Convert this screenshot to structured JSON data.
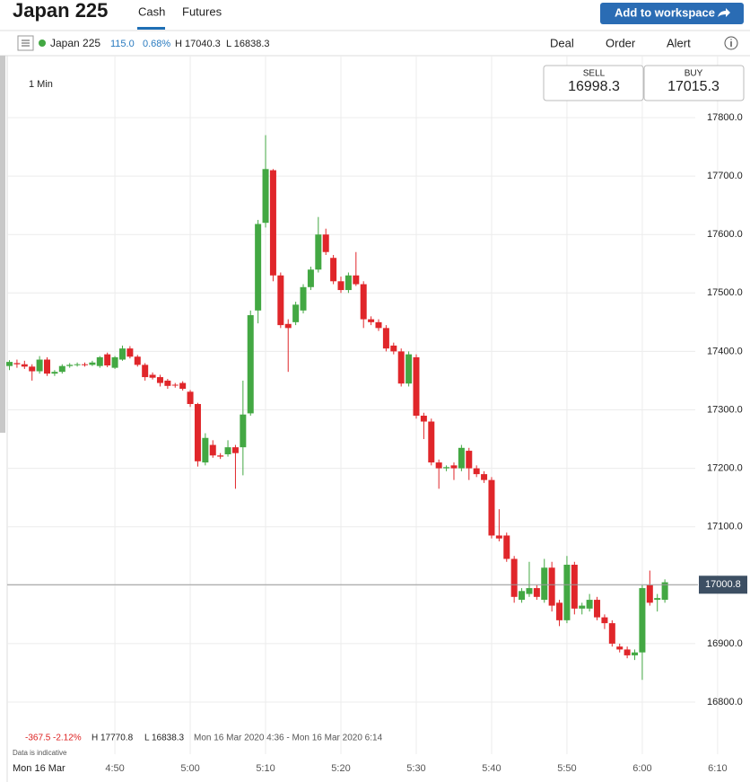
{
  "header": {
    "title": "Japan 225",
    "tabs": [
      "Cash",
      "Futures"
    ],
    "button": "Add to workspace"
  },
  "toolbar": {
    "instrument": "Japan 225",
    "change": "115.0",
    "change_pct": "0.68%",
    "high": "H 17040.3",
    "low": "L 16838.3",
    "actions": [
      "Deal",
      "Order",
      "Alert"
    ]
  },
  "interval": "1 Min",
  "quote": {
    "sell_label": "SELL",
    "sell": "16998.3",
    "buy_label": "BUY",
    "buy": "17015.3"
  },
  "stats": {
    "change": "-367.5",
    "change_pct": "-2.12%",
    "high": "H 17770.8",
    "low": "L 16838.3",
    "range": "Mon 16 Mar 2020 4:36 - Mon 16 Mar 2020 6:14",
    "note": "Data is indicative"
  },
  "chart_data": {
    "type": "candlestick",
    "date_label": "Mon 16 Mar",
    "up_color": "#43a843",
    "down_color": "#e0262a",
    "grid": true,
    "current_price": {
      "value": 17000.8,
      "label": "17000.8"
    },
    "xlim": [
      275.7,
      374.3
    ],
    "xticks": [
      {
        "value": 290,
        "label": "4:50"
      },
      {
        "value": 300,
        "label": "5:00"
      },
      {
        "value": 310,
        "label": "5:10"
      },
      {
        "value": 320,
        "label": "5:20"
      },
      {
        "value": 330,
        "label": "5:30"
      },
      {
        "value": 340,
        "label": "5:40"
      },
      {
        "value": 350,
        "label": "5:50"
      },
      {
        "value": 360,
        "label": "6:00"
      },
      {
        "value": 370,
        "label": "6:10"
      }
    ],
    "ylim": [
      16710.9,
      17906
    ],
    "yticks": [
      {
        "value": 16800,
        "label": "16800.0"
      },
      {
        "value": 16900,
        "label": "16900.0"
      },
      {
        "value": 17000,
        "label": "17000.0"
      },
      {
        "value": 17100,
        "label": "17100.0"
      },
      {
        "value": 17200,
        "label": "17200.0"
      },
      {
        "value": 17300,
        "label": "17300.0"
      },
      {
        "value": 17400,
        "label": "17400.0"
      },
      {
        "value": 17500,
        "label": "17500.0"
      },
      {
        "value": 17600,
        "label": "17600.0"
      },
      {
        "value": 17700,
        "label": "17700.0"
      },
      {
        "value": 17800,
        "label": "17800.0"
      }
    ],
    "x": [
      276,
      277,
      278,
      279,
      280,
      281,
      282,
      283,
      284,
      285,
      286,
      287,
      288,
      289,
      290,
      291,
      292,
      293,
      294,
      295,
      296,
      297,
      298,
      299,
      300,
      301,
      302,
      303,
      304,
      305,
      306,
      307,
      308,
      309,
      310,
      311,
      312,
      313,
      314,
      315,
      316,
      317,
      318,
      319,
      320,
      321,
      322,
      323,
      324,
      325,
      326,
      327,
      328,
      329,
      330,
      331,
      332,
      333,
      334,
      335,
      336,
      337,
      338,
      339,
      340,
      341,
      342,
      343,
      344,
      345,
      346,
      347,
      348,
      349,
      350,
      351,
      352,
      353,
      354,
      355,
      356,
      357,
      358,
      359,
      360,
      361,
      362,
      363
    ],
    "open": [
      17375,
      17380,
      17378,
      17374,
      17366,
      17386,
      17362,
      17365,
      17375,
      17377,
      17378,
      17377,
      17375,
      17395,
      17372,
      17386,
      17405,
      17391,
      17377,
      17360,
      17356,
      17350,
      17343,
      17346,
      17331,
      17310,
      17210,
      17240,
      17222,
      17224,
      17236,
      17236,
      17294,
      17470,
      17620,
      17710,
      17530,
      17447,
      17450,
      17470,
      17510,
      17540,
      17600,
      17560,
      17520,
      17505,
      17530,
      17515,
      17455,
      17450,
      17440,
      17410,
      17400,
      17345,
      17390,
      17290,
      17280,
      17210,
      17200,
      17205,
      17200,
      17230,
      17200,
      17190,
      17180,
      17085,
      17085,
      17045,
      16975,
      16985,
      16995,
      16975,
      17030,
      16970,
      16940,
      17035,
      16960,
      16960,
      16975,
      16945,
      16935,
      16895,
      16890,
      16880,
      16885,
      17000,
      16975,
      16975
    ],
    "high": [
      17385,
      17386,
      17384,
      17378,
      17392,
      17390,
      17368,
      17378,
      17380,
      17381,
      17381,
      17384,
      17392,
      17398,
      17392,
      17410,
      17409,
      17394,
      17380,
      17364,
      17360,
      17353,
      17346,
      17349,
      17334,
      17312,
      17260,
      17248,
      17226,
      17248,
      17240,
      17350,
      17470,
      17625,
      17770,
      17712,
      17535,
      17455,
      17485,
      17515,
      17545,
      17630,
      17610,
      17565,
      17528,
      17535,
      17570,
      17520,
      17460,
      17455,
      17445,
      17415,
      17405,
      17400,
      17395,
      17295,
      17285,
      17215,
      17205,
      17210,
      17240,
      17235,
      17205,
      17195,
      17185,
      17130,
      17090,
      17050,
      16995,
      17040,
      17000,
      17045,
      17040,
      16975,
      17050,
      17040,
      16970,
      16985,
      16980,
      16950,
      16940,
      16900,
      16895,
      16890,
      17000,
      17025,
      16985,
      17010
    ],
    "low": [
      17368,
      17372,
      17370,
      17350,
      17362,
      17358,
      17358,
      17362,
      17372,
      17374,
      17374,
      17375,
      17372,
      17373,
      17370,
      17384,
      17388,
      17374,
      17350,
      17352,
      17340,
      17336,
      17338,
      17333,
      17305,
      17203,
      17205,
      17218,
      17216,
      17220,
      17165,
      17188,
      17290,
      17448,
      17612,
      17520,
      17440,
      17365,
      17445,
      17465,
      17505,
      17535,
      17565,
      17515,
      17500,
      17500,
      17512,
      17440,
      17445,
      17435,
      17400,
      17395,
      17340,
      17340,
      17285,
      17250,
      17205,
      17165,
      17195,
      17180,
      17195,
      17180,
      17185,
      17175,
      17080,
      17075,
      17040,
      16970,
      16970,
      16980,
      16975,
      16970,
      16955,
      16930,
      16935,
      16950,
      16950,
      16955,
      16940,
      16925,
      16895,
      16885,
      16875,
      16872,
      16838,
      16965,
      16955,
      16970
    ],
    "close": [
      17382,
      17378,
      17374,
      17366,
      17386,
      17362,
      17365,
      17375,
      17377,
      17378,
      17377,
      17381,
      17390,
      17376,
      17390,
      17405,
      17391,
      17377,
      17356,
      17355,
      17346,
      17341,
      17342,
      17336,
      17310,
      17212,
      17252,
      17222,
      17220,
      17236,
      17226,
      17292,
      17462,
      17618,
      17712,
      17530,
      17445,
      17440,
      17480,
      17510,
      17540,
      17600,
      17570,
      17520,
      17505,
      17530,
      17515,
      17455,
      17450,
      17440,
      17405,
      17400,
      17345,
      17395,
      17290,
      17280,
      17210,
      17200,
      17202,
      17200,
      17235,
      17200,
      17190,
      17180,
      17085,
      17080,
      17045,
      16980,
      16990,
      16995,
      16980,
      17030,
      16965,
      16940,
      17035,
      16960,
      16965,
      16975,
      16945,
      16935,
      16900,
      16890,
      16880,
      16885,
      16995,
      16970,
      16978,
      17005
    ]
  }
}
